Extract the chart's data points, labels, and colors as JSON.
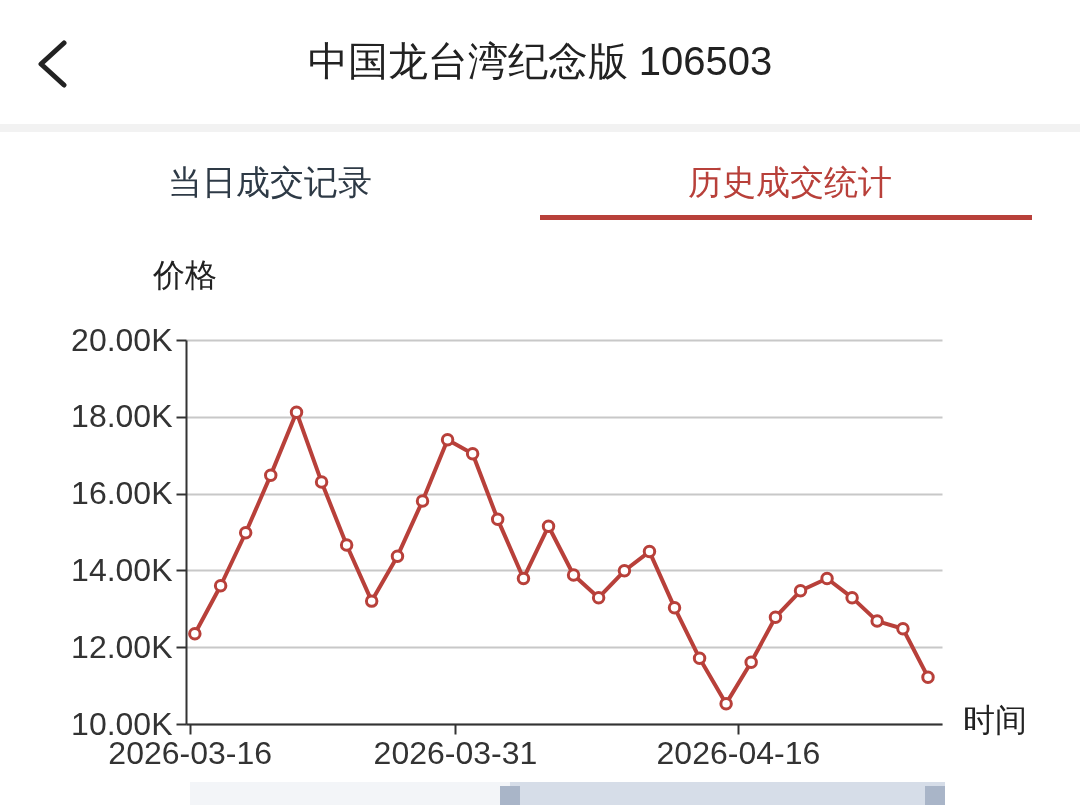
{
  "chart_data": {
    "type": "line",
    "title": "中国龙台湾纪念版 106503",
    "annotations": [
      "当日成交记录",
      "历史成交统计"
    ],
    "xlabel": "时间",
    "ylabel": "价格",
    "x": [
      "2026-03-16T07:00",
      "2026-03-17T18:00",
      "2026-03-19T04:00",
      "2026-03-20T14:00",
      "2026-03-22T01:00",
      "2026-03-23T11:00",
      "2026-03-24T21:00",
      "2026-03-26T07:00",
      "2026-03-27T18:00",
      "2026-03-29T04:00",
      "2026-03-30T14:00",
      "2026-04-01T00:00",
      "2026-04-02T10:00",
      "2026-04-03T21:00",
      "2026-04-05T07:00",
      "2026-04-06T17:00",
      "2026-04-08T03:00",
      "2026-04-09T14:00",
      "2026-04-11T00:00",
      "2026-04-12T10:00",
      "2026-04-13T20:00",
      "2026-04-15T08:00",
      "2026-04-16T18:00",
      "2026-04-18T03:00",
      "2026-04-19T13:00",
      "2026-04-21T01:00",
      "2026-04-22T11:00",
      "2026-04-23T21:00",
      "2026-04-25T08:00",
      "2026-04-26T18:00"
    ],
    "series": [
      {
        "color": "#b8403a",
        "values": [
          12350,
          13600,
          14980,
          16480,
          18120,
          16300,
          14660,
          13200,
          14370,
          15810,
          17400,
          17040,
          15330,
          13790,
          15150,
          13880,
          13290,
          13990,
          14490,
          13030,
          11710,
          10530,
          11610,
          12780,
          13470,
          13790,
          13290,
          12680,
          12480,
          11220
        ]
      }
    ],
    "xlim": [
      "2026-03-15T19:00",
      "2026-04-27T13:00"
    ],
    "xticks": [
      {
        "value": "2026-03-16",
        "label": "2026-03-16"
      },
      {
        "value": "2026-03-31",
        "label": "2026-03-31"
      },
      {
        "value": "2026-04-16",
        "label": "2026-04-16"
      }
    ],
    "ylim": [
      10000,
      20000
    ],
    "yticks": [
      {
        "value": 10000,
        "label": "10.00K"
      },
      {
        "value": 12000,
        "label": "12.00K"
      },
      {
        "value": 14000,
        "label": "14.00K"
      },
      {
        "value": 16000,
        "label": "16.00K"
      },
      {
        "value": 18000,
        "label": "18.00K"
      },
      {
        "value": 20000,
        "label": "20.00K"
      }
    ],
    "grid": "y",
    "marker": "circle",
    "line_style": "solid"
  }
}
